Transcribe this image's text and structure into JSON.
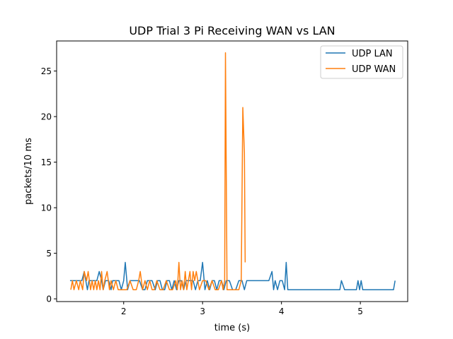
{
  "chart_data": {
    "type": "line",
    "title": "UDP Trial 3 Pi Receiving WAN vs LAN",
    "xlabel": "time (s)",
    "ylabel": "packets/10 ms",
    "xlim": [
      1.15,
      5.6
    ],
    "ylim": [
      -0.3,
      28.3
    ],
    "xticks": [
      2,
      3,
      4,
      5
    ],
    "yticks": [
      0,
      5,
      10,
      15,
      20,
      25
    ],
    "grid": false,
    "legend_position": "top-right",
    "series": [
      {
        "name": "UDP LAN",
        "color": "#1f77b4",
        "x": [
          1.32,
          1.36,
          1.4,
          1.44,
          1.47,
          1.5,
          1.52,
          1.54,
          1.56,
          1.58,
          1.61,
          1.63,
          1.66,
          1.69,
          1.72,
          1.74,
          1.77,
          1.79,
          1.81,
          1.84,
          1.86,
          1.89,
          1.91,
          1.94,
          1.97,
          2.0,
          2.02,
          2.05,
          2.08,
          2.12,
          2.16,
          2.2,
          2.24,
          2.27,
          2.3,
          2.33,
          2.36,
          2.4,
          2.43,
          2.46,
          2.49,
          2.52,
          2.55,
          2.58,
          2.61,
          2.64,
          2.67,
          2.7,
          2.73,
          2.76,
          2.79,
          2.82,
          2.85,
          2.88,
          2.91,
          2.94,
          2.97,
          3.0,
          3.03,
          3.06,
          3.09,
          3.12,
          3.15,
          3.18,
          3.21,
          3.24,
          3.27,
          3.3,
          3.34,
          3.38,
          3.42,
          3.46,
          3.5,
          3.53,
          3.56,
          3.6,
          3.64,
          3.68,
          3.72,
          3.76,
          3.8,
          3.84,
          3.88,
          3.9,
          3.92,
          3.95,
          3.98,
          4.01,
          4.04,
          4.06,
          4.08,
          4.5,
          4.74,
          4.76,
          4.8,
          4.95,
          4.97,
          4.99,
          5.01,
          5.03,
          5.42,
          5.44
        ],
        "y": [
          2,
          2,
          2,
          2,
          2,
          3,
          2,
          1,
          2,
          2,
          2,
          2,
          2,
          3,
          2,
          1,
          2,
          2,
          2,
          1,
          2,
          2,
          2,
          2,
          1,
          2,
          4,
          1,
          2,
          2,
          2,
          2,
          1,
          1,
          2,
          2,
          2,
          1,
          2,
          2,
          1,
          1,
          2,
          2,
          1,
          2,
          1,
          2,
          2,
          1,
          2,
          2,
          2,
          2,
          1,
          2,
          2,
          4,
          1,
          2,
          1,
          2,
          2,
          1,
          2,
          2,
          1,
          2,
          2,
          1,
          1,
          2,
          2,
          1,
          2,
          2,
          2,
          2,
          2,
          2,
          2,
          2,
          3,
          1,
          2,
          1,
          2,
          2,
          1,
          4,
          1,
          1,
          1,
          2,
          1,
          1,
          2,
          1,
          2,
          1,
          1,
          2
        ]
      },
      {
        "name": "UDP WAN",
        "color": "#ff7f0e",
        "x": [
          1.33,
          1.35,
          1.37,
          1.4,
          1.43,
          1.45,
          1.48,
          1.5,
          1.53,
          1.55,
          1.58,
          1.6,
          1.62,
          1.64,
          1.66,
          1.68,
          1.7,
          1.72,
          1.74,
          1.76,
          1.79,
          1.82,
          1.84,
          1.87,
          1.9,
          1.93,
          1.96,
          2.0,
          2.04,
          2.08,
          2.12,
          2.16,
          2.19,
          2.21,
          2.24,
          2.27,
          2.3,
          2.33,
          2.36,
          2.39,
          2.42,
          2.46,
          2.5,
          2.54,
          2.58,
          2.62,
          2.66,
          2.68,
          2.7,
          2.72,
          2.74,
          2.76,
          2.78,
          2.8,
          2.82,
          2.84,
          2.86,
          2.88,
          2.9,
          2.92,
          2.96,
          3.0,
          3.04,
          3.08,
          3.12,
          3.16,
          3.2,
          3.24,
          3.26,
          3.28,
          3.29,
          3.31,
          3.34,
          3.38,
          3.42,
          3.46,
          3.49,
          3.51,
          3.53,
          3.54
        ],
        "y": [
          1,
          2,
          1,
          2,
          1,
          2,
          1,
          3,
          2,
          3,
          1,
          2,
          1,
          2,
          1,
          2,
          1,
          3,
          1,
          2,
          3,
          1,
          2,
          1,
          2,
          1,
          1,
          1,
          1,
          2,
          1,
          1,
          2,
          3,
          1,
          2,
          1,
          2,
          1,
          1,
          2,
          1,
          1,
          2,
          1,
          1,
          2,
          1,
          4,
          1,
          2,
          1,
          3,
          1,
          2,
          3,
          1,
          3,
          2,
          3,
          1,
          2,
          2,
          1,
          2,
          1,
          1,
          2,
          1,
          2,
          27,
          1,
          1,
          1,
          1,
          1,
          2,
          21,
          16,
          4
        ]
      }
    ]
  }
}
